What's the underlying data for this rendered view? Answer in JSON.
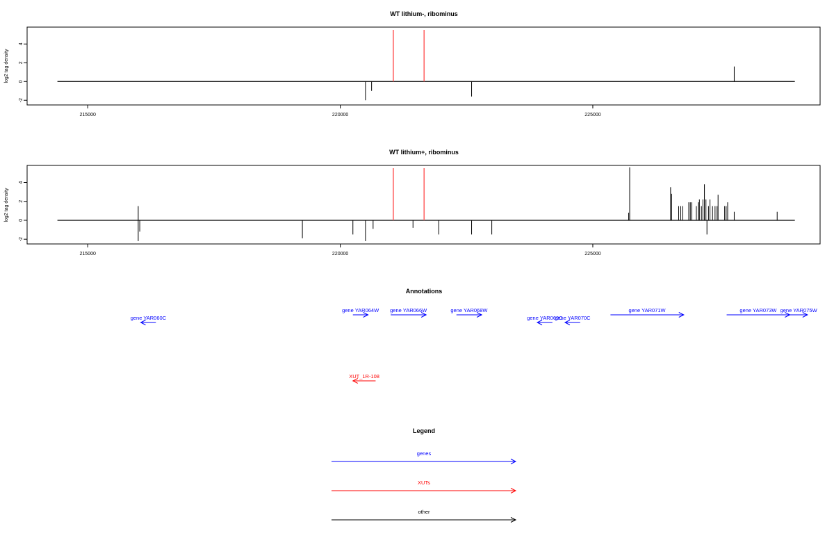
{
  "colors": {
    "axis": "#000000",
    "bar": "#000000",
    "highlight": "#ff6666",
    "gene": "#0000ff",
    "xut": "#ff0000",
    "other": "#000000"
  },
  "chart_data": [
    {
      "type": "bar",
      "title": "WT lithium-, ribominus",
      "ylabel": "log2 tag density",
      "xlim": [
        213800,
        229500
      ],
      "ylim": [
        -2.5,
        5.8
      ],
      "x_ticks": [
        215000,
        220000,
        225000
      ],
      "x_tick_labels": [
        "215000",
        "220000",
        "225000"
      ],
      "y_ticks": [
        -2,
        0,
        2,
        4
      ],
      "y_tick_labels": [
        "-2",
        "0",
        "2",
        "4"
      ],
      "baseline": {
        "x_start": 214400,
        "x_end": 229000,
        "y": 0
      },
      "highlight_lines": [
        221050,
        221660
      ],
      "bars": [
        {
          "x": 220500,
          "y": -2.0
        },
        {
          "x": 220620,
          "y": -1.0
        },
        {
          "x": 222600,
          "y": -1.6
        },
        {
          "x": 227800,
          "y": 1.6
        }
      ]
    },
    {
      "type": "bar",
      "title": "WT lithium+, ribominus",
      "ylabel": "log2 tag density",
      "xlim": [
        213800,
        229500
      ],
      "ylim": [
        -2.5,
        5.8
      ],
      "x_ticks": [
        215000,
        220000,
        225000
      ],
      "x_tick_labels": [
        "215000",
        "220000",
        "225000"
      ],
      "y_ticks": [
        -2,
        0,
        2,
        4
      ],
      "y_tick_labels": [
        "-2",
        "0",
        "2",
        "4"
      ],
      "baseline": {
        "x_start": 214400,
        "x_end": 229000,
        "y": 0
      },
      "highlight_lines": [
        221050,
        221660
      ],
      "bars": [
        {
          "x": 216000,
          "y": 1.5
        },
        {
          "x": 216000,
          "y": -2.2
        },
        {
          "x": 216030,
          "y": -1.2
        },
        {
          "x": 219250,
          "y": -1.9
        },
        {
          "x": 220250,
          "y": -1.5
        },
        {
          "x": 220500,
          "y": -2.2
        },
        {
          "x": 220650,
          "y": -0.9
        },
        {
          "x": 221440,
          "y": -0.8
        },
        {
          "x": 221950,
          "y": -1.5
        },
        {
          "x": 222600,
          "y": -1.5
        },
        {
          "x": 223000,
          "y": -1.5
        },
        {
          "x": 225730,
          "y": 5.6
        },
        {
          "x": 225710,
          "y": 0.8
        },
        {
          "x": 226540,
          "y": 3.5
        },
        {
          "x": 226560,
          "y": 2.8
        },
        {
          "x": 226700,
          "y": 1.5
        },
        {
          "x": 226740,
          "y": 1.5
        },
        {
          "x": 226780,
          "y": 1.5
        },
        {
          "x": 226900,
          "y": 1.9
        },
        {
          "x": 226930,
          "y": 1.9
        },
        {
          "x": 226960,
          "y": 1.9
        },
        {
          "x": 227050,
          "y": 1.5
        },
        {
          "x": 227090,
          "y": 1.9
        },
        {
          "x": 227110,
          "y": 2.2
        },
        {
          "x": 227150,
          "y": 1.5
        },
        {
          "x": 227180,
          "y": 2.2
        },
        {
          "x": 227210,
          "y": 3.8
        },
        {
          "x": 227240,
          "y": 2.2
        },
        {
          "x": 227260,
          "y": -1.5
        },
        {
          "x": 227290,
          "y": 1.5
        },
        {
          "x": 227320,
          "y": 2.2
        },
        {
          "x": 227370,
          "y": 1.5
        },
        {
          "x": 227420,
          "y": 1.5
        },
        {
          "x": 227460,
          "y": 1.5
        },
        {
          "x": 227480,
          "y": 2.7
        },
        {
          "x": 227610,
          "y": 1.5
        },
        {
          "x": 227640,
          "y": 1.5
        },
        {
          "x": 227670,
          "y": 1.9
        },
        {
          "x": 227800,
          "y": 0.9
        },
        {
          "x": 228650,
          "y": 0.9
        }
      ]
    }
  ],
  "annotations": {
    "title": "Annotations",
    "xlim": [
      213800,
      229500
    ],
    "features": [
      {
        "label": "gene YAR060C",
        "kind": "gene",
        "strand": "-",
        "start": 216050,
        "end": 216350,
        "row": 2
      },
      {
        "label": "gene YAR064W",
        "kind": "gene",
        "strand": "+",
        "start": 220250,
        "end": 220550,
        "row": 1
      },
      {
        "label": "gene YAR066W",
        "kind": "gene",
        "strand": "+",
        "start": 221000,
        "end": 221700,
        "row": 1
      },
      {
        "label": "gene YAR068W",
        "kind": "gene",
        "strand": "+",
        "start": 222300,
        "end": 222800,
        "row": 1
      },
      {
        "label": "gene YAR069C",
        "kind": "gene",
        "strand": "-",
        "start": 223900,
        "end": 224200,
        "row": 2
      },
      {
        "label": "gene YAR070C",
        "kind": "gene",
        "strand": "-",
        "start": 224450,
        "end": 224750,
        "row": 2
      },
      {
        "label": "gene YAR071W",
        "kind": "gene",
        "strand": "+",
        "start": 225350,
        "end": 226800,
        "row": 0
      },
      {
        "label": "gene YAR073W",
        "kind": "gene",
        "strand": "+",
        "start": 227650,
        "end": 228900,
        "row": 0
      },
      {
        "label": "gene YAR075W",
        "kind": "gene",
        "strand": "+",
        "start": 228900,
        "end": 229250,
        "row": 0
      },
      {
        "label": "XUT_1R-108",
        "kind": "xut",
        "strand": "-",
        "start": 220250,
        "end": 220700,
        "row": 3
      }
    ]
  },
  "legend": {
    "title": "Legend",
    "items": [
      {
        "label": "genes",
        "kind": "gene"
      },
      {
        "label": "XUTs",
        "kind": "xut"
      },
      {
        "label": "other",
        "kind": "other"
      }
    ]
  }
}
